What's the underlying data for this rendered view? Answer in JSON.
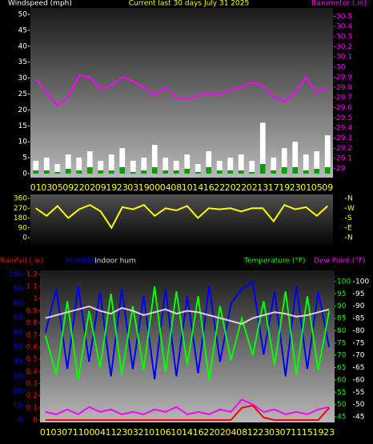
{
  "chart_data": [
    {
      "type": "line",
      "title": "Current last 30 days July 31 2025",
      "categories": [
        "01",
        "03",
        "05",
        "09",
        "22",
        "02",
        "09",
        "19",
        "23",
        "03",
        "19",
        "00",
        "04",
        "08",
        "10",
        "14",
        "16",
        "22",
        "20",
        "22",
        "02",
        "13",
        "17",
        "19",
        "23",
        "01",
        "05",
        "09"
      ],
      "axes": [
        {
          "label": "Windspeed (mph)",
          "side": "left",
          "color": "#ffffff",
          "lim": [
            0,
            50
          ],
          "ticks": [
            0,
            5,
            10,
            15,
            20,
            25,
            30,
            35,
            40,
            45,
            50
          ]
        },
        {
          "label": "Barometer (.in)",
          "side": "right",
          "color": "#ff00ff",
          "lim": [
            28.95,
            30.52
          ],
          "ticks": [
            29,
            29.1,
            29.2,
            29.3,
            29.4,
            29.5,
            29.6,
            29.7,
            29.8,
            29.9,
            30,
            30.1,
            30.2,
            30.3,
            30.4,
            30.5
          ]
        }
      ],
      "series": [
        {
          "kind": "bar",
          "axis": 0,
          "color": "#ffffff",
          "values": [
            4,
            5,
            3,
            6,
            5,
            7,
            4,
            6,
            8,
            4,
            5,
            9,
            5,
            4,
            6,
            3,
            7,
            4,
            5,
            6,
            4,
            16,
            5,
            8,
            10,
            6,
            7,
            12
          ]
        },
        {
          "kind": "bar",
          "axis": 0,
          "color": "#00a000",
          "values": [
            1,
            1,
            0.5,
            1.5,
            1,
            2,
            1,
            1,
            2,
            0.5,
            1,
            2,
            1,
            1,
            1.5,
            0.5,
            2,
            1,
            1,
            1,
            0.5,
            3,
            1,
            2,
            2,
            1,
            1.5,
            2
          ]
        },
        {
          "kind": "line",
          "axis": 1,
          "color": "#ff00ff",
          "values": [
            29.88,
            29.75,
            29.62,
            29.7,
            29.92,
            29.9,
            29.78,
            29.82,
            29.9,
            29.86,
            29.8,
            29.72,
            29.8,
            29.7,
            29.68,
            29.72,
            29.75,
            29.73,
            29.78,
            29.8,
            29.85,
            29.82,
            29.7,
            29.66,
            29.75,
            29.9,
            29.75,
            29.8
          ]
        }
      ]
    },
    {
      "type": "line",
      "axes": [
        {
          "side": "left",
          "color": "#ffff00",
          "lim": [
            0,
            360
          ],
          "ticks": [
            0,
            90,
            180,
            270,
            360
          ]
        },
        {
          "side": "right",
          "color": "#ffff00",
          "lim": [
            0,
            360
          ],
          "ticks": [
            {
              "value": 360,
              "label": "N"
            },
            {
              "value": 270,
              "label": "W"
            },
            {
              "value": 180,
              "label": "S"
            },
            {
              "value": 90,
              "label": "E"
            },
            {
              "value": 0,
              "label": "N"
            }
          ]
        }
      ],
      "series": [
        {
          "kind": "line",
          "axis": 0,
          "color": "#ffff00",
          "values": [
            270,
            200,
            290,
            180,
            260,
            300,
            240,
            90,
            280,
            260,
            300,
            200,
            270,
            250,
            290,
            180,
            270,
            260,
            270,
            240,
            270,
            270,
            150,
            300,
            260,
            280,
            200,
            290
          ]
        }
      ]
    },
    {
      "type": "line",
      "categories": [
        "01",
        "03",
        "07",
        "11",
        "00",
        "04",
        "11",
        "23",
        "03",
        "21",
        "01",
        "06",
        "10",
        "14",
        "16",
        "22",
        "02",
        "04",
        "08",
        "12",
        "23",
        "03",
        "07",
        "11",
        "15",
        "19",
        "23"
      ],
      "axes": [
        {
          "label": "Rainfall (.in)",
          "side": "left",
          "color": "#ff0000",
          "lim": [
            0,
            1.2
          ],
          "ticks": [
            0,
            0.1,
            0.2,
            0.3,
            0.4,
            0.5,
            0.6,
            0.7,
            0.8,
            0.9,
            1,
            1.1,
            1.2
          ]
        },
        {
          "label": "Humidity",
          "side": "left",
          "color": "#0000ff",
          "lim": [
            0,
            100
          ],
          "ticks": [
            0,
            10,
            20,
            30,
            40,
            50,
            60,
            70,
            80,
            90,
            100
          ]
        },
        {
          "label": "Temperature (°F)",
          "side": "right",
          "color": "#00ff00",
          "lim": [
            43.7,
            102.9
          ],
          "ticks": [
            45,
            50,
            55,
            60,
            65,
            70,
            75,
            80,
            85,
            90,
            95,
            100
          ]
        },
        {
          "label": "Dew Point (°F)",
          "side": "right",
          "color": "#ffffff",
          "label_color": "#ff00ff",
          "lim": [
            43.7,
            102.9
          ],
          "ticks": [
            45,
            50,
            55,
            60,
            65,
            70,
            75,
            80,
            85,
            90,
            95,
            100
          ]
        }
      ],
      "series": [
        {
          "kind": "line",
          "axis": 1,
          "color": "#0000ff",
          "values": [
            60,
            90,
            35,
            92,
            40,
            88,
            30,
            90,
            35,
            85,
            28,
            90,
            30,
            85,
            32,
            92,
            40,
            80,
            90,
            95,
            45,
            88,
            30,
            92,
            35,
            88,
            50
          ]
        },
        {
          "kind": "line",
          "axis": 2,
          "color": "#00ff00",
          "values": [
            78,
            62,
            92,
            60,
            88,
            65,
            95,
            62,
            90,
            64,
            98,
            63,
            96,
            66,
            94,
            60,
            90,
            68,
            85,
            70,
            92,
            66,
            96,
            62,
            94,
            64,
            88
          ]
        },
        {
          "kind": "line",
          "axis": 1,
          "name": "Indoor hum",
          "color": "#e0d0e0",
          "values": [
            70,
            72,
            74,
            76,
            78,
            75,
            73,
            77,
            75,
            72,
            74,
            76,
            73,
            75,
            74,
            72,
            70,
            68,
            66,
            70,
            72,
            74,
            73,
            71,
            72,
            74,
            76
          ]
        },
        {
          "kind": "line",
          "axis": 3,
          "color": "#ff00ff",
          "values": [
            47,
            46,
            48,
            46,
            49,
            47,
            48,
            46,
            47,
            46,
            48,
            47,
            49,
            46,
            47,
            46,
            48,
            47,
            52,
            50,
            47,
            48,
            46,
            47,
            46,
            48,
            49
          ]
        },
        {
          "kind": "line",
          "axis": 0,
          "color": "#ff0000",
          "values": [
            0,
            0,
            0,
            0,
            0,
            0,
            0,
            0,
            0,
            0,
            0,
            0,
            0,
            0,
            0,
            0,
            0,
            0,
            0.1,
            0.12,
            0.02,
            0,
            0,
            0,
            0,
            0,
            0.1
          ]
        }
      ]
    }
  ]
}
